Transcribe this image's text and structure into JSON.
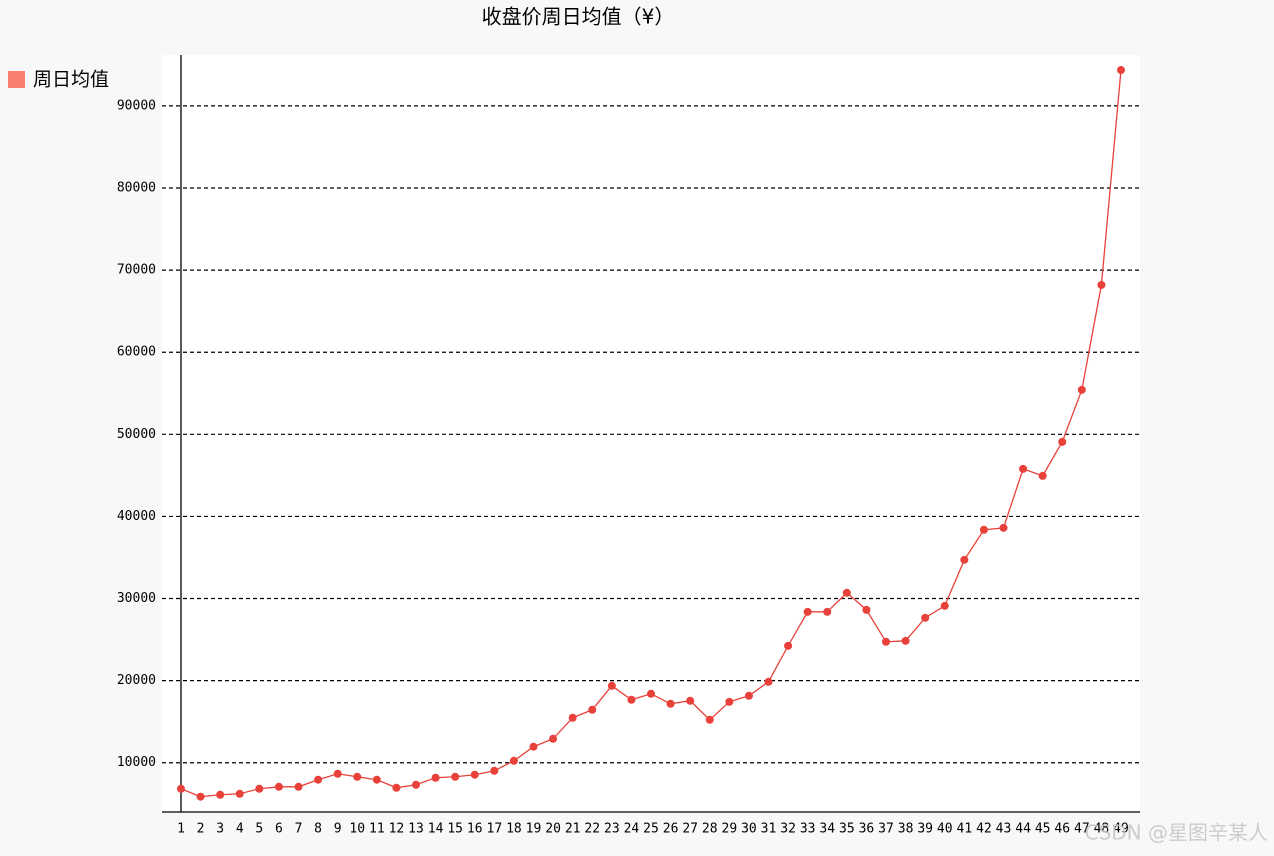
{
  "chart_data": {
    "type": "line",
    "title": "收盘价周日均值（¥）",
    "categories": [
      "1",
      "2",
      "3",
      "4",
      "5",
      "6",
      "7",
      "8",
      "9",
      "10",
      "11",
      "12",
      "13",
      "14",
      "15",
      "16",
      "17",
      "18",
      "19",
      "20",
      "21",
      "22",
      "23",
      "24",
      "25",
      "26",
      "27",
      "28",
      "29",
      "30",
      "31",
      "32",
      "33",
      "34",
      "35",
      "36",
      "37",
      "38",
      "39",
      "40",
      "41",
      "42",
      "43",
      "44",
      "45",
      "46",
      "47",
      "48",
      "49"
    ],
    "series": [
      {
        "name": "周日均值",
        "color": "#e8413a",
        "legend_color": "#f87e6f",
        "values": [
          6830,
          5860,
          6100,
          6220,
          6830,
          7070,
          7070,
          7930,
          8660,
          8290,
          7930,
          6950,
          7320,
          8170,
          8290,
          8540,
          9020,
          10240,
          11950,
          12920,
          15480,
          16450,
          19370,
          17670,
          18400,
          17180,
          17550,
          15230,
          17420,
          18160,
          19860,
          24240,
          28380,
          28380,
          30700,
          28620,
          24730,
          24850,
          27650,
          29110,
          34710,
          38370,
          38610,
          45790,
          44940,
          49080,
          55420,
          68190,
          94370
        ]
      }
    ],
    "ylim": [
      4000,
      96200
    ],
    "yticks": [
      10000,
      20000,
      30000,
      40000,
      50000,
      60000,
      70000,
      80000,
      90000
    ],
    "grid": true,
    "legend": "top-left",
    "watermark": "CSDN @星图辛某人"
  }
}
